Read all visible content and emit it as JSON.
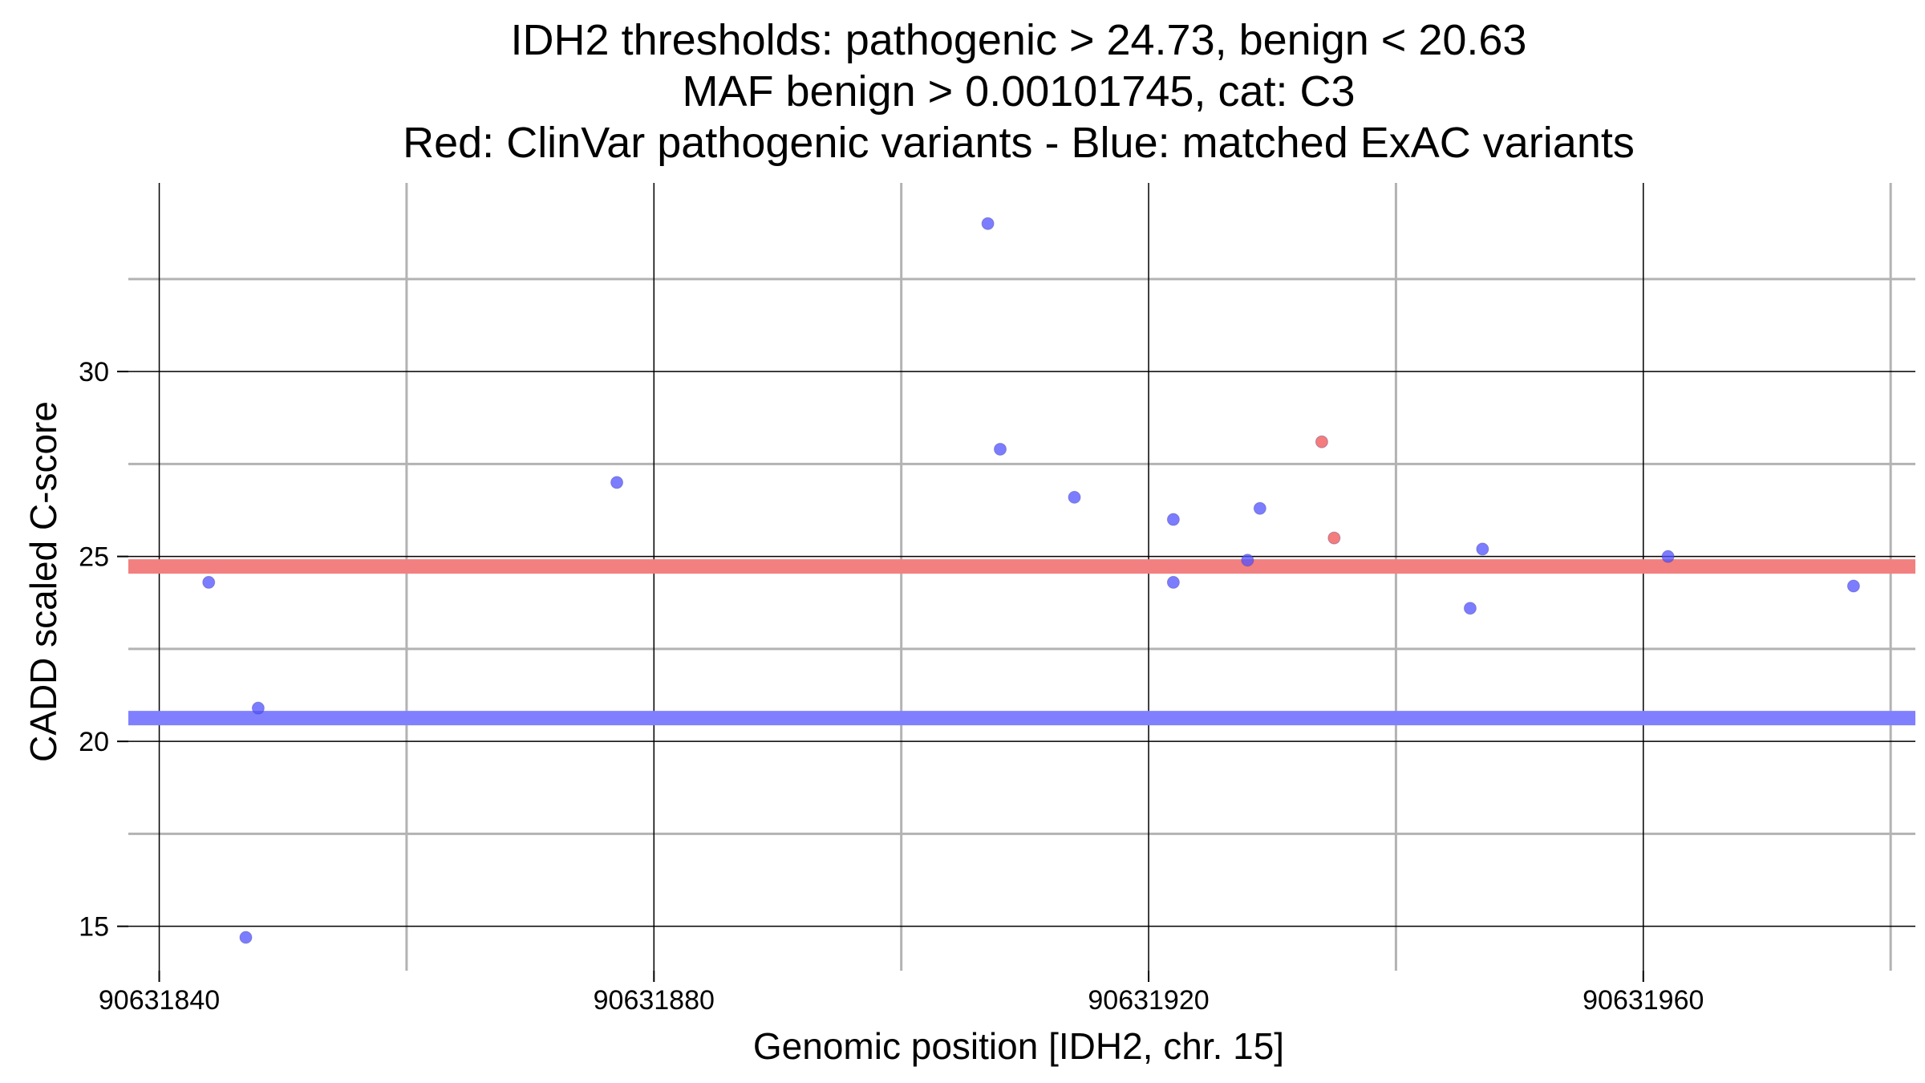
{
  "chart_data": {
    "type": "scatter",
    "title_lines": [
      "IDH2 thresholds: pathogenic > 24.73, benign < 20.63",
      "MAF benign > 0.00101745, cat: C3",
      "Red: ClinVar pathogenic variants - Blue: matched ExAC variants"
    ],
    "xlabel": "Genomic position [IDH2, chr. 15]",
    "ylabel": "CADD scaled C-score",
    "x_major_ticks": [
      90631840,
      90631880,
      90631920,
      90631960
    ],
    "x_tick_labels": [
      "90631840",
      "90631880",
      "90631920",
      "90631960"
    ],
    "x_minor_ticks": [
      90631860,
      90631900,
      90631940,
      90631980
    ],
    "y_major_ticks": [
      15,
      20,
      25,
      30
    ],
    "y_tick_labels": [
      "15",
      "20",
      "25",
      "30"
    ],
    "y_minor_ticks": [
      17.5,
      22.5,
      27.5,
      32.5
    ],
    "xlim": [
      90631837.5,
      90631982
    ],
    "ylim": [
      13.8,
      35.1
    ],
    "thresholds": [
      {
        "name": "pathogenic",
        "value": 24.73,
        "color": "#f28080"
      },
      {
        "name": "benign",
        "value": 20.63,
        "color": "#8080ff"
      }
    ],
    "series": [
      {
        "name": "Matched ExAC variants",
        "color": "#5050ff",
        "points": [
          [
            90631844,
            24.3
          ],
          [
            90631848,
            20.9
          ],
          [
            90631847,
            14.7
          ],
          [
            90631877,
            27.0
          ],
          [
            90631907,
            34.0
          ],
          [
            90631908,
            27.9
          ],
          [
            90631914,
            26.6
          ],
          [
            90631922,
            26.0
          ],
          [
            90631922,
            24.3
          ],
          [
            90631928,
            24.9
          ],
          [
            90631929,
            26.3
          ],
          [
            90631946,
            23.6
          ],
          [
            90631947,
            25.2
          ],
          [
            90631962,
            25.0
          ],
          [
            90631977,
            24.2
          ]
        ]
      },
      {
        "name": "ClinVar pathogenic variants",
        "color": "#f05050",
        "points": [
          [
            90631934,
            28.1
          ],
          [
            90631935,
            25.5
          ]
        ]
      }
    ]
  }
}
